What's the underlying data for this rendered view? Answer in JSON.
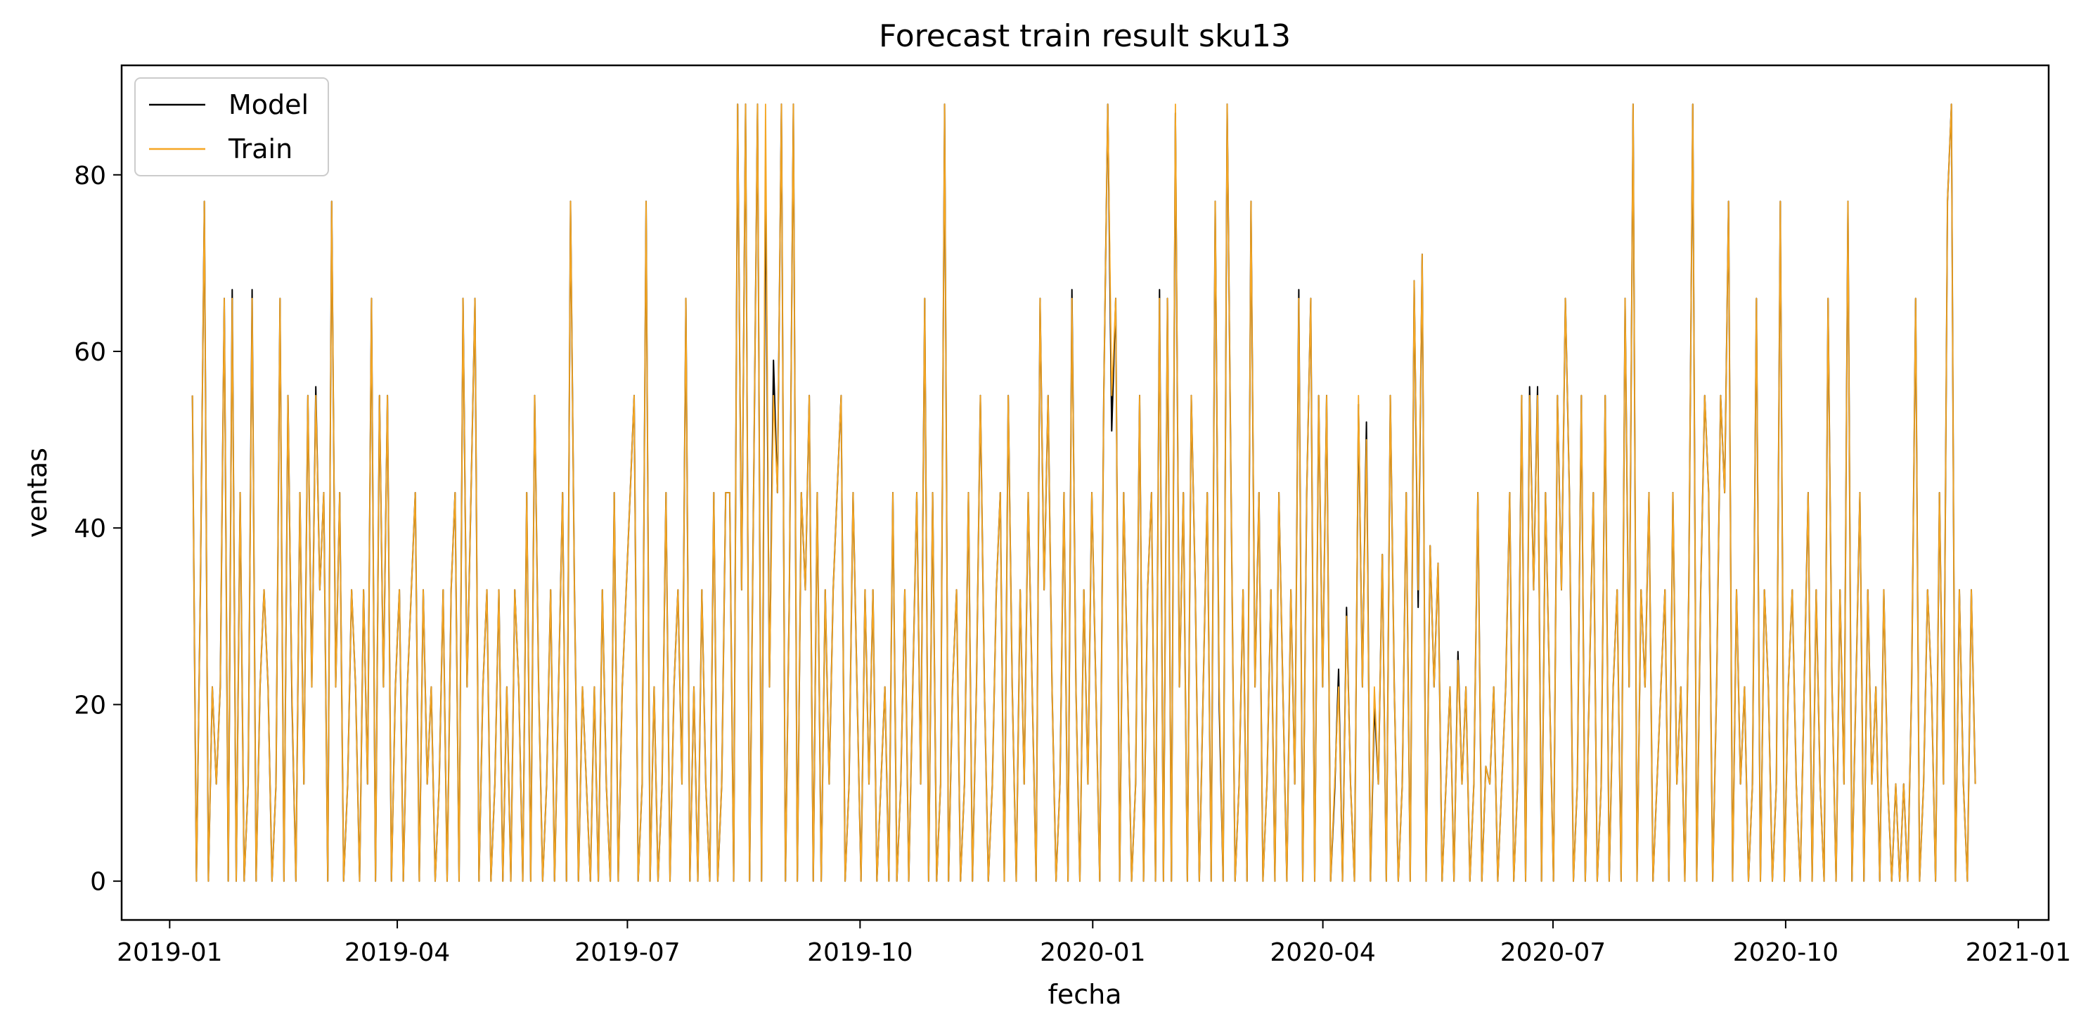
{
  "chart_data": {
    "type": "line",
    "title": "Forecast train result sku13",
    "xlabel": "fecha",
    "ylabel": "ventas",
    "x_range": [
      "2018-12-13",
      "2021-01-13"
    ],
    "ylim": [
      -4.4,
      92.4
    ],
    "x_ticks": [
      {
        "date": "2019-01-01",
        "label": "2019-01"
      },
      {
        "date": "2019-04-01",
        "label": "2019-04"
      },
      {
        "date": "2019-07-01",
        "label": "2019-07"
      },
      {
        "date": "2019-10-01",
        "label": "2019-10"
      },
      {
        "date": "2020-01-01",
        "label": "2020-01"
      },
      {
        "date": "2020-04-01",
        "label": "2020-04"
      },
      {
        "date": "2020-07-01",
        "label": "2020-07"
      },
      {
        "date": "2020-10-01",
        "label": "2020-10"
      },
      {
        "date": "2021-01-01",
        "label": "2021-01"
      }
    ],
    "y_ticks": [
      0,
      20,
      40,
      60,
      80
    ],
    "grid": false,
    "legend": {
      "position": "top-left"
    },
    "x_start": "2019-01-10",
    "x_end": "2020-12-15",
    "series": [
      {
        "name": "Model",
        "color": "#000000",
        "values": [
          55,
          0,
          33,
          77,
          0,
          22,
          11,
          22,
          66,
          0,
          67,
          0,
          44,
          0,
          11,
          67,
          0,
          22,
          33,
          22,
          0,
          11,
          66,
          0,
          55,
          21,
          0,
          44,
          11,
          55,
          22,
          56,
          33,
          44,
          0,
          77,
          22,
          44,
          0,
          11,
          33,
          22,
          0,
          33,
          11,
          66,
          0,
          55,
          22,
          55,
          0,
          22,
          33,
          0,
          22,
          33,
          44,
          0,
          33,
          11,
          22,
          0,
          11,
          33,
          0,
          33,
          44,
          0,
          66,
          22,
          44,
          66,
          0,
          22,
          33,
          0,
          11,
          33,
          0,
          22,
          0,
          33,
          22,
          0,
          44,
          0,
          55,
          22,
          0,
          11,
          33,
          0,
          22,
          44,
          0,
          77,
          33,
          0,
          22,
          11,
          0,
          22,
          0,
          33,
          11,
          0,
          44,
          0,
          22,
          33,
          44,
          55,
          0,
          11,
          77,
          0,
          22,
          0,
          11,
          44,
          0,
          22,
          33,
          11,
          66,
          0,
          22,
          0,
          33,
          11,
          0,
          44,
          0,
          11,
          44,
          44,
          0,
          88,
          33,
          88,
          0,
          44,
          88,
          0,
          81,
          22,
          59,
          44,
          88,
          0,
          33,
          88,
          0,
          44,
          33,
          55,
          0,
          44,
          0,
          33,
          11,
          33,
          44,
          55,
          0,
          11,
          44,
          22,
          0,
          33,
          11,
          33,
          0,
          11,
          22,
          0,
          44,
          0,
          11,
          33,
          0,
          22,
          44,
          11,
          66,
          0,
          44,
          0,
          11,
          88,
          0,
          22,
          33,
          0,
          11,
          44,
          0,
          22,
          55,
          22,
          0,
          11,
          33,
          44,
          0,
          55,
          22,
          0,
          33,
          11,
          44,
          22,
          0,
          66,
          33,
          55,
          22,
          0,
          11,
          44,
          0,
          67,
          22,
          0,
          33,
          11,
          44,
          22,
          0,
          55,
          88,
          51,
          66,
          0,
          44,
          22,
          0,
          11,
          55,
          0,
          33,
          44,
          0,
          67,
          0,
          66,
          0,
          87,
          22,
          44,
          0,
          55,
          33,
          0,
          22,
          44,
          0,
          77,
          20,
          0,
          88,
          44,
          0,
          11,
          33,
          0,
          77,
          22,
          44,
          0,
          11,
          33,
          0,
          44,
          22,
          0,
          33,
          11,
          67,
          0,
          44,
          66,
          0,
          55,
          22,
          55,
          0,
          10,
          24,
          0,
          31,
          11,
          0,
          54,
          22,
          52,
          0,
          20,
          11,
          37,
          0,
          55,
          22,
          0,
          11,
          44,
          0,
          68,
          31,
          71,
          0,
          38,
          22,
          36,
          0,
          11,
          22,
          0,
          26,
          11,
          22,
          0,
          11,
          44,
          0,
          13,
          11,
          22,
          0,
          11,
          22,
          44,
          0,
          11,
          55,
          0,
          56,
          33,
          56,
          0,
          44,
          22,
          0,
          55,
          33,
          66,
          44,
          0,
          11,
          55,
          0,
          22,
          44,
          0,
          11,
          55,
          0,
          22,
          33,
          0,
          66,
          22,
          88,
          0,
          33,
          22,
          44,
          0,
          11,
          22,
          33,
          0,
          44,
          11,
          22,
          0,
          33,
          88,
          0,
          33,
          55,
          44,
          0,
          22,
          55,
          44,
          77,
          0,
          33,
          11,
          22,
          0,
          11,
          66,
          0,
          33,
          22,
          0,
          11,
          77,
          0,
          22,
          33,
          11,
          0,
          22,
          44,
          0,
          33,
          11,
          0,
          66,
          22,
          0,
          33,
          11,
          77,
          0,
          22,
          44,
          0,
          33,
          11,
          22,
          0,
          33,
          11,
          0,
          11,
          0,
          11,
          0,
          22,
          66,
          0,
          11,
          33,
          22,
          0,
          44,
          11,
          77,
          88,
          0,
          33,
          11,
          0,
          33,
          11
        ],
        "description_note": ""
      },
      {
        "name": "Train",
        "color": "#f5a623",
        "values": [
          55,
          0,
          33,
          77,
          0,
          22,
          11,
          22,
          66,
          0,
          66,
          0,
          44,
          0,
          11,
          66,
          0,
          22,
          33,
          22,
          0,
          11,
          66,
          0,
          55,
          22,
          0,
          44,
          11,
          55,
          22,
          55,
          33,
          44,
          0,
          77,
          22,
          44,
          0,
          11,
          33,
          22,
          0,
          33,
          11,
          66,
          0,
          55,
          22,
          55,
          0,
          22,
          33,
          0,
          22,
          33,
          44,
          0,
          33,
          11,
          22,
          0,
          11,
          33,
          0,
          33,
          44,
          0,
          66,
          22,
          44,
          66,
          0,
          22,
          33,
          0,
          11,
          33,
          0,
          22,
          0,
          33,
          22,
          0,
          44,
          0,
          55,
          22,
          0,
          11,
          33,
          0,
          22,
          44,
          0,
          77,
          33,
          0,
          22,
          11,
          0,
          22,
          0,
          33,
          11,
          0,
          44,
          0,
          22,
          33,
          44,
          55,
          0,
          11,
          77,
          0,
          22,
          0,
          11,
          44,
          0,
          22,
          33,
          11,
          66,
          0,
          22,
          0,
          33,
          11,
          0,
          44,
          0,
          11,
          44,
          44,
          0,
          88,
          33,
          88,
          0,
          44,
          88,
          0,
          88,
          22,
          55,
          44,
          88,
          0,
          33,
          88,
          0,
          44,
          33,
          55,
          0,
          44,
          0,
          33,
          11,
          33,
          44,
          55,
          0,
          11,
          44,
          22,
          0,
          33,
          11,
          33,
          0,
          11,
          22,
          0,
          44,
          0,
          11,
          33,
          0,
          22,
          44,
          11,
          66,
          0,
          44,
          0,
          11,
          88,
          0,
          22,
          33,
          0,
          11,
          44,
          0,
          22,
          55,
          22,
          0,
          11,
          33,
          44,
          0,
          55,
          22,
          0,
          33,
          11,
          44,
          22,
          0,
          66,
          33,
          55,
          22,
          0,
          11,
          44,
          0,
          66,
          22,
          0,
          33,
          11,
          44,
          22,
          0,
          55,
          88,
          55,
          66,
          0,
          44,
          22,
          0,
          11,
          55,
          0,
          33,
          44,
          0,
          66,
          0,
          66,
          0,
          88,
          22,
          44,
          0,
          55,
          33,
          0,
          22,
          44,
          0,
          77,
          22,
          0,
          88,
          44,
          0,
          11,
          33,
          0,
          77,
          22,
          44,
          0,
          11,
          33,
          0,
          44,
          22,
          0,
          33,
          11,
          66,
          0,
          44,
          66,
          0,
          55,
          22,
          55,
          0,
          11,
          22,
          0,
          30,
          11,
          0,
          55,
          22,
          50,
          0,
          22,
          11,
          37,
          0,
          55,
          22,
          0,
          11,
          44,
          0,
          68,
          33,
          71,
          0,
          38,
          22,
          36,
          0,
          11,
          22,
          0,
          25,
          11,
          22,
          0,
          11,
          44,
          0,
          13,
          11,
          22,
          0,
          11,
          22,
          44,
          0,
          11,
          55,
          0,
          55,
          33,
          55,
          0,
          44,
          22,
          0,
          55,
          33,
          66,
          44,
          0,
          11,
          55,
          0,
          22,
          44,
          0,
          11,
          55,
          0,
          22,
          33,
          0,
          66,
          22,
          88,
          0,
          33,
          22,
          44,
          0,
          11,
          22,
          33,
          0,
          44,
          11,
          22,
          0,
          33,
          88,
          0,
          33,
          55,
          44,
          0,
          22,
          55,
          44,
          77,
          0,
          33,
          11,
          22,
          0,
          11,
          66,
          0,
          33,
          22,
          0,
          11,
          77,
          0,
          22,
          33,
          11,
          0,
          22,
          44,
          0,
          33,
          11,
          0,
          66,
          22,
          0,
          33,
          11,
          77,
          0,
          22,
          44,
          0,
          33,
          11,
          22,
          0,
          33,
          11,
          0,
          11,
          0,
          11,
          0,
          22,
          66,
          0,
          11,
          33,
          22,
          0,
          44,
          11,
          77,
          88,
          0,
          33,
          11,
          0,
          33,
          11
        ]
      }
    ]
  }
}
